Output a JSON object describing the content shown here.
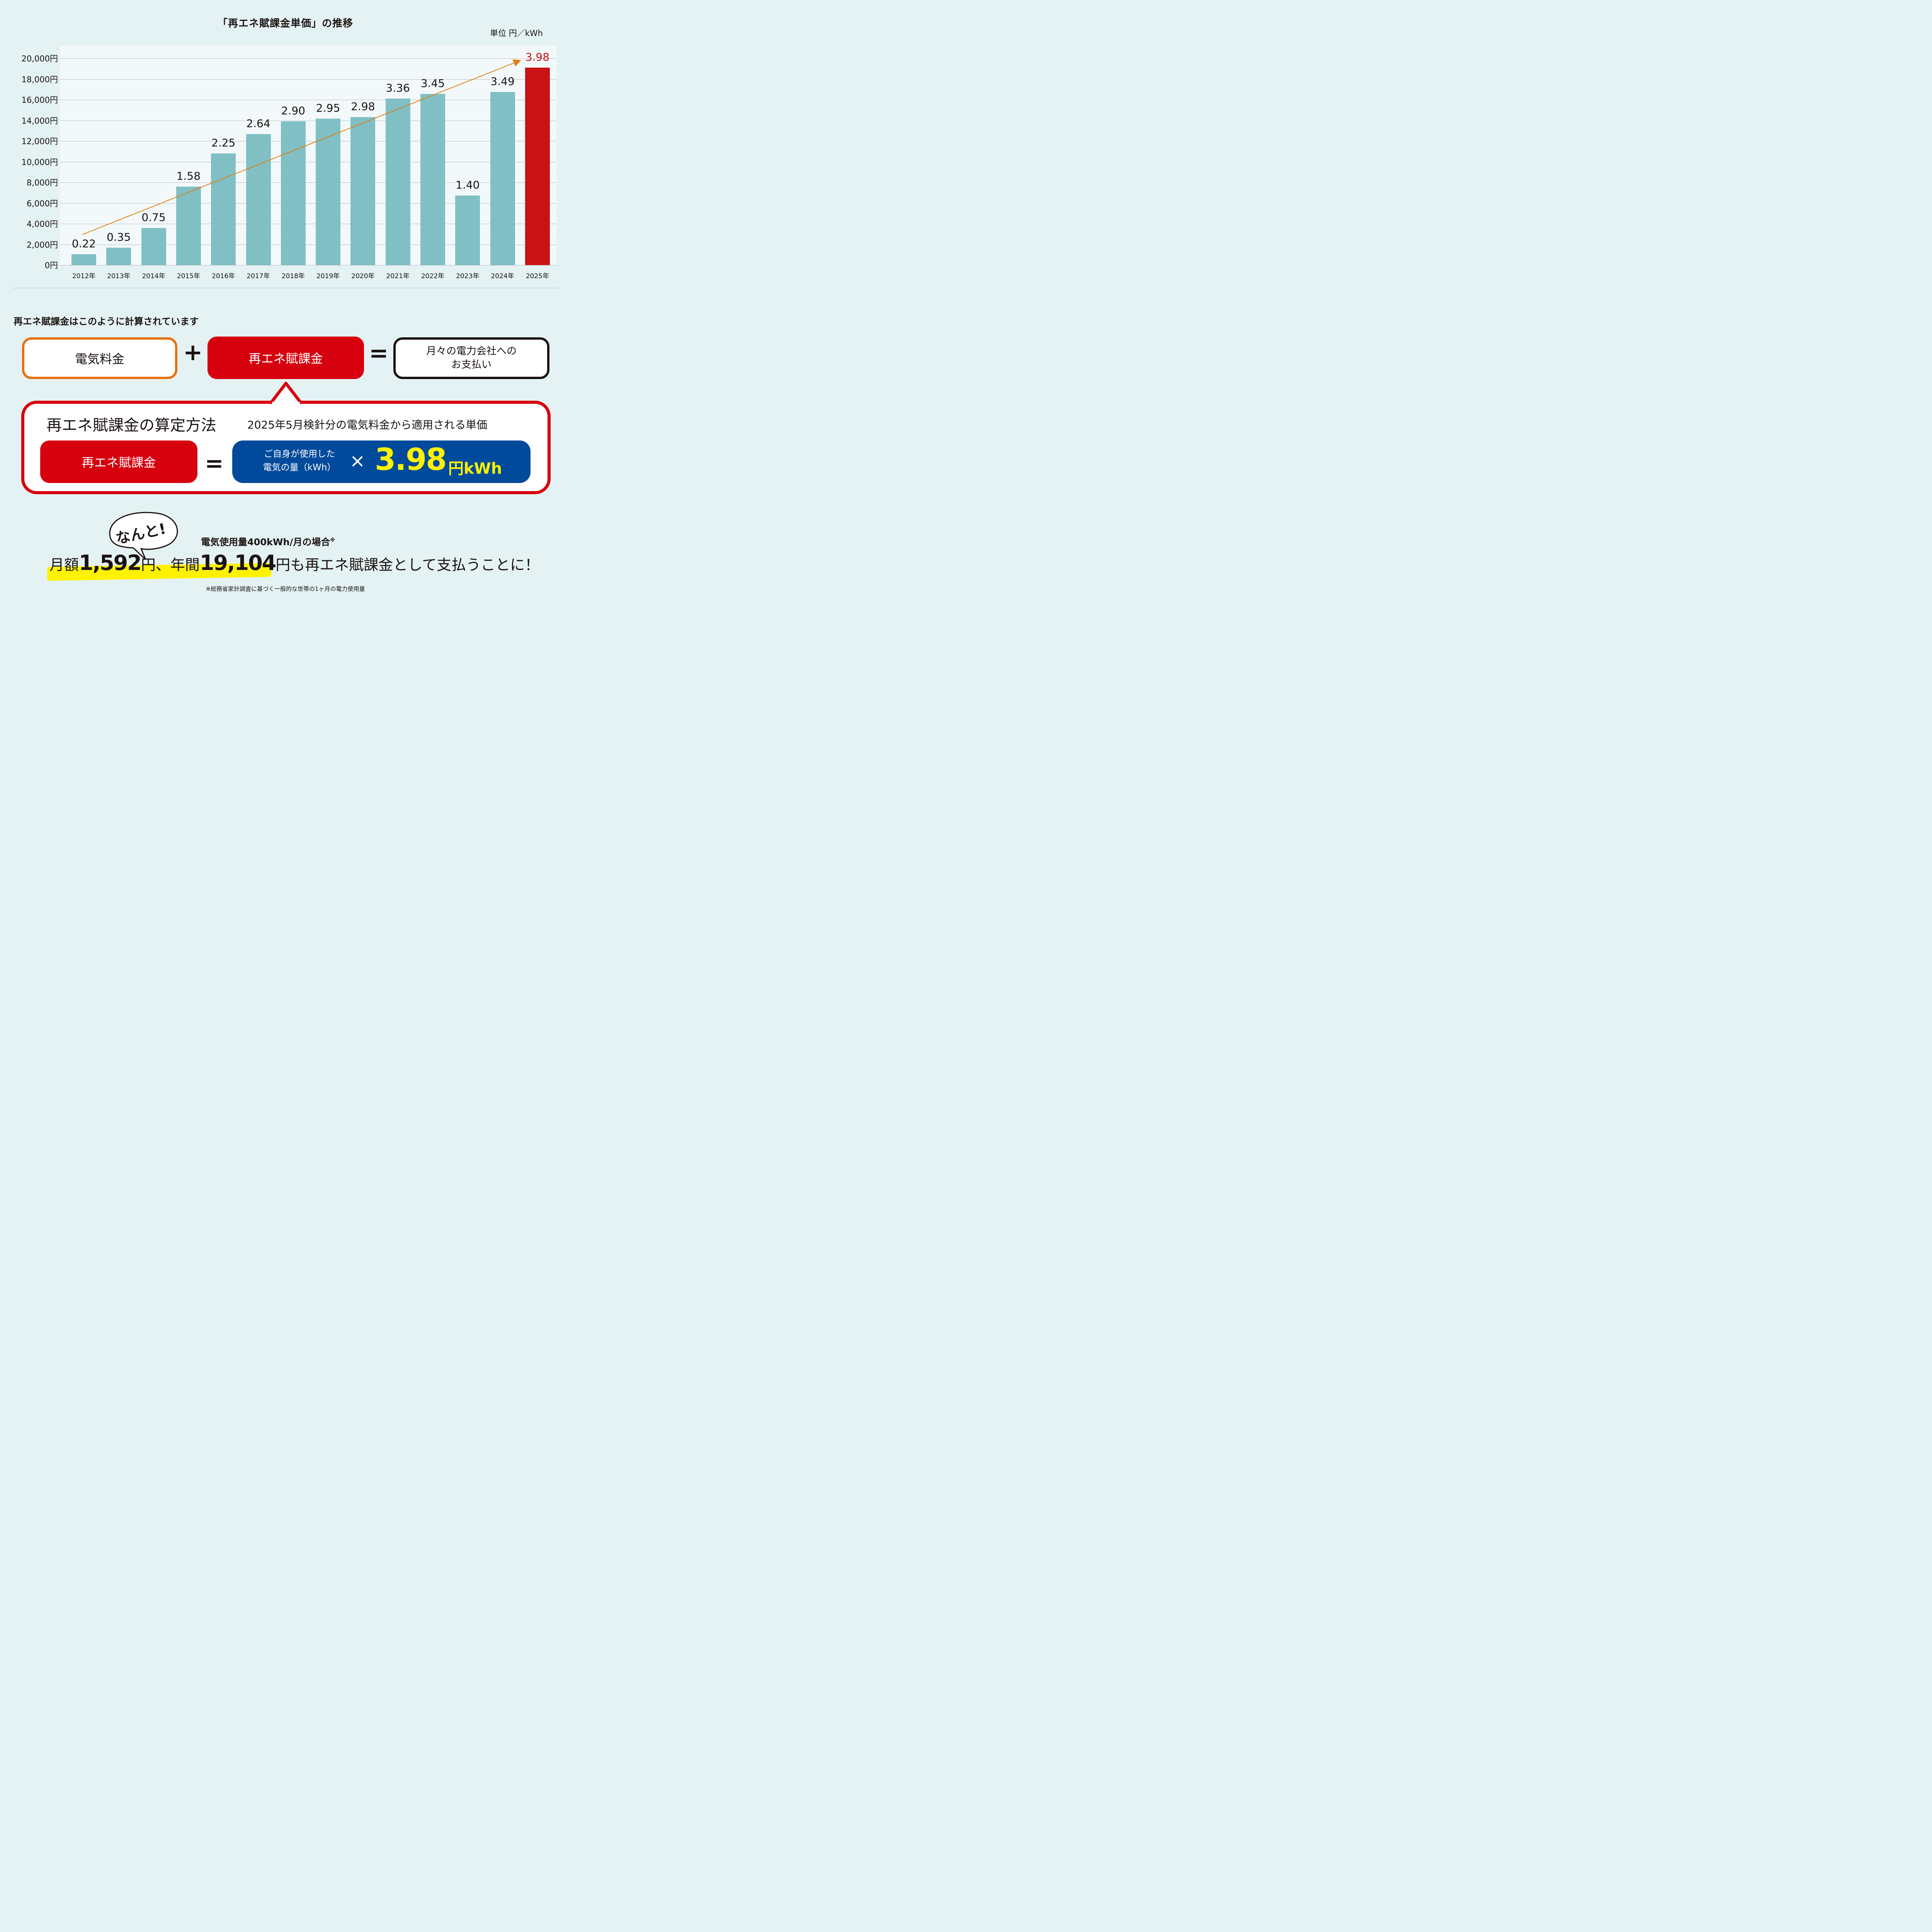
{
  "chart": {
    "title": "「再エネ賦課金単価」の推移",
    "unit": "単位 円／kWh"
  },
  "chart_data": {
    "type": "bar",
    "title": "「再エネ賦課金単価」の推移",
    "unit_label": "単位 円／kWh",
    "categories": [
      "2012年",
      "2013年",
      "2014年",
      "2015年",
      "2016年",
      "2017年",
      "2018年",
      "2019年",
      "2020年",
      "2021年",
      "2022年",
      "2023年",
      "2024年",
      "2025年"
    ],
    "unit_price_labels": [
      "0.22",
      "0.35",
      "0.75",
      "1.58",
      "2.25",
      "2.64",
      "2.90",
      "2.95",
      "2.98",
      "3.36",
      "3.45",
      "1.40",
      "3.49",
      "3.98"
    ],
    "values": [
      1056,
      1680,
      3600,
      7584,
      10800,
      12672,
      13920,
      14160,
      14304,
      16128,
      16560,
      6720,
      16752,
      19104
    ],
    "xlabel": "",
    "ylabel": "円",
    "ylim": [
      0,
      20000
    ],
    "yticks": [
      "0円",
      "2,000円",
      "4,000円",
      "6,000円",
      "8,000円",
      "10,000円",
      "12,000円",
      "14,000円",
      "16,000円",
      "18,000円",
      "20,000円"
    ],
    "grid": true,
    "highlight_index": 13,
    "colors": {
      "bar": "#80c0c5",
      "highlight": "#c81216",
      "trend": "#e07f13"
    },
    "annotations": [
      "trend arrow from 2012 to 2025"
    ]
  },
  "formula": {
    "heading": "再エネ賦課金はこのように計算されています",
    "electric_fee": "電気料金",
    "plus": "+",
    "levy": "再エネ賦課金",
    "equals": "=",
    "payment_line1": "月々の電力会社への",
    "payment_line2": "お支払い"
  },
  "method": {
    "title": "再エネ賦課金の算定方法",
    "subtitle": "2025年5月検針分の電気料金から適用される単価",
    "levy": "再エネ賦課金",
    "equals": "=",
    "usage_line1": "ご自身が使用した",
    "usage_line2": "電気の量（kWh）",
    "times": "×",
    "price": "3.98",
    "price_unit": "円kWh"
  },
  "summary": {
    "bubble": "なんと!",
    "condition": "電気使用量400kWh/月の場合",
    "condition_mark": "※",
    "monthly_prefix": "月額",
    "monthly_amount": "1,592",
    "monthly_suffix": "円、年間",
    "annual_amount": "19,104",
    "annual_suffix": "円",
    "tail": "も再エネ賦課金として支払うことに！",
    "footnote": "※総務省家計調査に基づく一般的な世帯の1ヶ月の電力使用量"
  }
}
